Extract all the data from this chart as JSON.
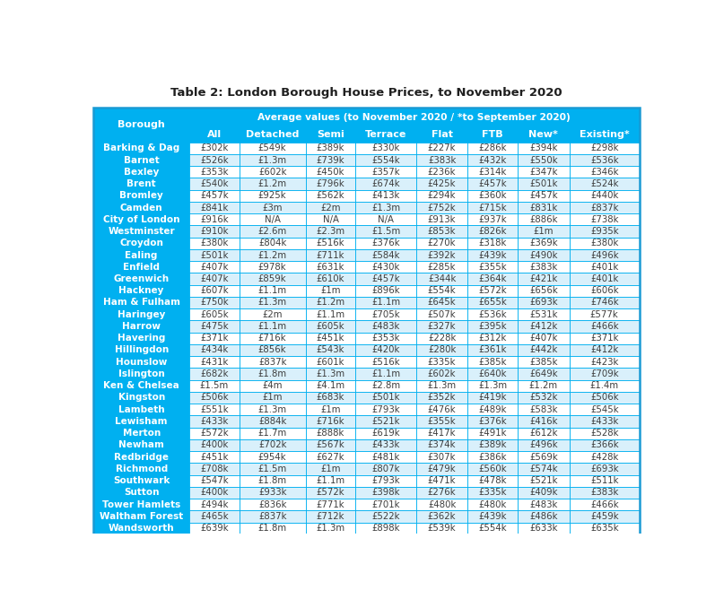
{
  "title": "Table 2: London Borough House Prices, to November 2020",
  "col_labels": [
    "All",
    "Detached",
    "Semi",
    "Terrace",
    "Flat",
    "FTB",
    "New*",
    "Existing*"
  ],
  "avg_header": "Average values (to November 2020 / *to September 2020)",
  "borough_header": "Borough",
  "rows": [
    [
      "Barking & Dag",
      "£302k",
      "£549k",
      "£389k",
      "£330k",
      "£227k",
      "£286k",
      "£394k",
      "£298k"
    ],
    [
      "Barnet",
      "£526k",
      "£1.3m",
      "£739k",
      "£554k",
      "£383k",
      "£432k",
      "£550k",
      "£536k"
    ],
    [
      "Bexley",
      "£353k",
      "£602k",
      "£450k",
      "£357k",
      "£236k",
      "£314k",
      "£347k",
      "£346k"
    ],
    [
      "Brent",
      "£540k",
      "£1.2m",
      "£796k",
      "£674k",
      "£425k",
      "£457k",
      "£501k",
      "£524k"
    ],
    [
      "Bromley",
      "£457k",
      "£925k",
      "£562k",
      "£413k",
      "£294k",
      "£360k",
      "£457k",
      "£440k"
    ],
    [
      "Camden",
      "£841k",
      "£3m",
      "£2m",
      "£1.3m",
      "£752k",
      "£715k",
      "£831k",
      "£837k"
    ],
    [
      "City of London",
      "£916k",
      "N/A",
      "N/A",
      "N/A",
      "£913k",
      "£937k",
      "£886k",
      "£738k"
    ],
    [
      "Westminster",
      "£910k",
      "£2.6m",
      "£2.3m",
      "£1.5m",
      "£853k",
      "£826k",
      "£1m",
      "£935k"
    ],
    [
      "Croydon",
      "£380k",
      "£804k",
      "£516k",
      "£376k",
      "£270k",
      "£318k",
      "£369k",
      "£380k"
    ],
    [
      "Ealing",
      "£501k",
      "£1.2m",
      "£711k",
      "£584k",
      "£392k",
      "£439k",
      "£490k",
      "£496k"
    ],
    [
      "Enfield",
      "£407k",
      "£978k",
      "£631k",
      "£430k",
      "£285k",
      "£355k",
      "£383k",
      "£401k"
    ],
    [
      "Greenwich",
      "£407k",
      "£859k",
      "£610k",
      "£457k",
      "£344k",
      "£364k",
      "£421k",
      "£401k"
    ],
    [
      "Hackney",
      "£607k",
      "£1.1m",
      "£1m",
      "£896k",
      "£554k",
      "£572k",
      "£656k",
      "£606k"
    ],
    [
      "Ham & Fulham",
      "£750k",
      "£1.3m",
      "£1.2m",
      "£1.1m",
      "£645k",
      "£655k",
      "£693k",
      "£746k"
    ],
    [
      "Haringey",
      "£605k",
      "£2m",
      "£1.1m",
      "£705k",
      "£507k",
      "£536k",
      "£531k",
      "£577k"
    ],
    [
      "Harrow",
      "£475k",
      "£1.1m",
      "£605k",
      "£483k",
      "£327k",
      "£395k",
      "£412k",
      "£466k"
    ],
    [
      "Havering",
      "£371k",
      "£716k",
      "£451k",
      "£353k",
      "£228k",
      "£312k",
      "£407k",
      "£371k"
    ],
    [
      "Hillingdon",
      "£434k",
      "£856k",
      "£543k",
      "£420k",
      "£280k",
      "£361k",
      "£442k",
      "£412k"
    ],
    [
      "Hounslow",
      "£431k",
      "£837k",
      "£601k",
      "£516k",
      "£335k",
      "£385k",
      "£385k",
      "£423k"
    ],
    [
      "Islington",
      "£682k",
      "£1.8m",
      "£1.3m",
      "£1.1m",
      "£602k",
      "£640k",
      "£649k",
      "£709k"
    ],
    [
      "Ken & Chelsea",
      "£1.5m",
      "£4m",
      "£4.1m",
      "£2.8m",
      "£1.3m",
      "£1.3m",
      "£1.2m",
      "£1.4m"
    ],
    [
      "Kingston",
      "£506k",
      "£1m",
      "£683k",
      "£501k",
      "£352k",
      "£419k",
      "£532k",
      "£506k"
    ],
    [
      "Lambeth",
      "£551k",
      "£1.3m",
      "£1m",
      "£793k",
      "£476k",
      "£489k",
      "£583k",
      "£545k"
    ],
    [
      "Lewisham",
      "£433k",
      "£884k",
      "£716k",
      "£521k",
      "£355k",
      "£376k",
      "£416k",
      "£433k"
    ],
    [
      "Merton",
      "£572k",
      "£1.7m",
      "£888k",
      "£619k",
      "£417k",
      "£491k",
      "£612k",
      "£528k"
    ],
    [
      "Newham",
      "£400k",
      "£702k",
      "£567k",
      "£433k",
      "£374k",
      "£389k",
      "£496k",
      "£366k"
    ],
    [
      "Redbridge",
      "£451k",
      "£954k",
      "£627k",
      "£481k",
      "£307k",
      "£386k",
      "£569k",
      "£428k"
    ],
    [
      "Richmond",
      "£708k",
      "£1.5m",
      "£1m",
      "£807k",
      "£479k",
      "£560k",
      "£574k",
      "£693k"
    ],
    [
      "Southwark",
      "£547k",
      "£1.8m",
      "£1.1m",
      "£793k",
      "£471k",
      "£478k",
      "£521k",
      "£511k"
    ],
    [
      "Sutton",
      "£400k",
      "£933k",
      "£572k",
      "£398k",
      "£276k",
      "£335k",
      "£409k",
      "£383k"
    ],
    [
      "Tower Hamlets",
      "£494k",
      "£836k",
      "£771k",
      "£701k",
      "£480k",
      "£480k",
      "£483k",
      "£466k"
    ],
    [
      "Waltham Forest",
      "£465k",
      "£837k",
      "£712k",
      "£522k",
      "£362k",
      "£439k",
      "£486k",
      "£459k"
    ],
    [
      "Wandsworth",
      "£639k",
      "£1.8m",
      "£1.3m",
      "£898k",
      "£539k",
      "£554k",
      "£633k",
      "£635k"
    ]
  ],
  "header_bg": "#00b0f0",
  "header_text": "#ffffff",
  "row_bg_odd": "#ffffff",
  "row_bg_even": "#d9f0fb",
  "borough_bg": "#00b0f0",
  "borough_text": "#ffffff",
  "data_text": "#3d3d3d",
  "border_color": "#00b0f0",
  "outer_border": "#1a9ad4",
  "title_color": "#1f1f1f",
  "title_fontsize": 9.5,
  "header_fontsize": 8.0,
  "data_fontsize": 7.3,
  "borough_fontsize": 7.5
}
